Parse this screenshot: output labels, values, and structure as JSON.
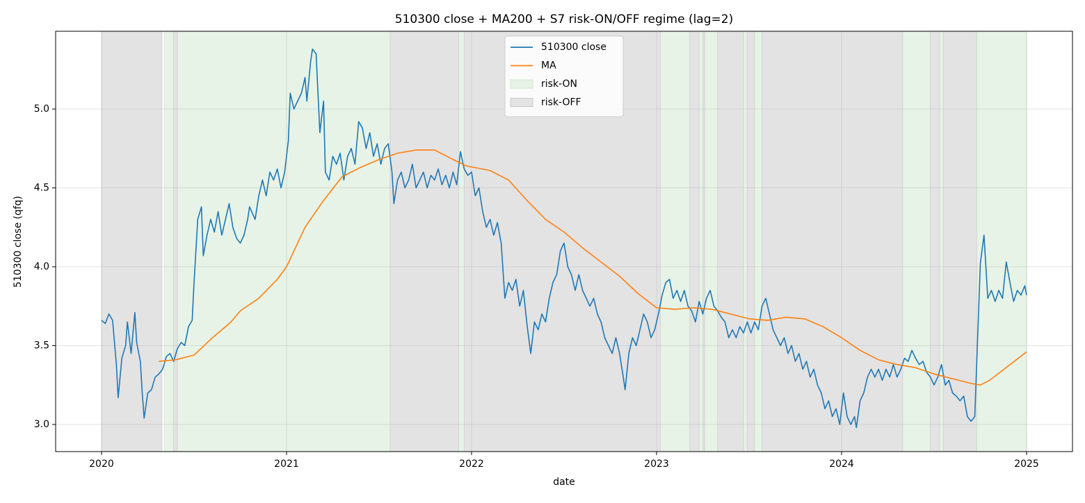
{
  "chart_data": {
    "type": "line",
    "title": "510300 close + MA200 + S7 risk-ON/OFF regime (lag=2)",
    "xlabel": "date",
    "ylabel": "510300 close (qfq)",
    "xlim": [
      2019.752,
      2025.248
    ],
    "xticks": [
      2020,
      2021,
      2022,
      2023,
      2024,
      2025
    ],
    "ylim": [
      2.828,
      5.493
    ],
    "yticks": [
      {
        "value": 3.0,
        "label": "3.0"
      },
      {
        "value": 3.5,
        "label": "3.5"
      },
      {
        "value": 4.0,
        "label": "4.0"
      },
      {
        "value": 4.5,
        "label": "4.5"
      },
      {
        "value": 5.0,
        "label": "5.0"
      }
    ],
    "grid": true,
    "legend": "upper center",
    "series": [
      {
        "name": "510300 close",
        "color": "#1f77b4",
        "x": [
          2020.0,
          2020.02,
          2020.04,
          2020.06,
          2020.08,
          2020.09,
          2020.11,
          2020.13,
          2020.14,
          2020.16,
          2020.18,
          2020.19,
          2020.21,
          2020.22,
          2020.23,
          2020.25,
          2020.27,
          2020.29,
          2020.31,
          2020.33,
          2020.35,
          2020.37,
          2020.39,
          2020.41,
          2020.43,
          2020.45,
          2020.47,
          2020.49,
          2020.5,
          2020.52,
          2020.54,
          2020.55,
          2020.57,
          2020.59,
          2020.61,
          2020.63,
          2020.65,
          2020.67,
          2020.69,
          2020.71,
          2020.73,
          2020.75,
          2020.77,
          2020.79,
          2020.8,
          2020.83,
          2020.85,
          2020.87,
          2020.89,
          2020.91,
          2020.93,
          2020.95,
          2020.97,
          2020.99,
          2021.01,
          2021.02,
          2021.04,
          2021.06,
          2021.08,
          2021.1,
          2021.11,
          2021.13,
          2021.14,
          2021.16,
          2021.18,
          2021.2,
          2021.21,
          2021.23,
          2021.25,
          2021.27,
          2021.29,
          2021.31,
          2021.33,
          2021.35,
          2021.37,
          2021.39,
          2021.41,
          2021.43,
          2021.45,
          2021.47,
          2021.49,
          2021.51,
          2021.53,
          2021.55,
          2021.57,
          2021.58,
          2021.6,
          2021.62,
          2021.64,
          2021.66,
          2021.68,
          2021.7,
          2021.72,
          2021.74,
          2021.76,
          2021.78,
          2021.8,
          2021.82,
          2021.84,
          2021.86,
          2021.88,
          2021.9,
          2021.92,
          2021.94,
          2021.96,
          2021.98,
          2022.0,
          2022.02,
          2022.04,
          2022.06,
          2022.08,
          2022.1,
          2022.12,
          2022.14,
          2022.16,
          2022.18,
          2022.2,
          2022.22,
          2022.24,
          2022.26,
          2022.28,
          2022.3,
          2022.32,
          2022.34,
          2022.36,
          2022.38,
          2022.4,
          2022.42,
          2022.44,
          2022.46,
          2022.48,
          2022.5,
          2022.52,
          2022.54,
          2022.56,
          2022.58,
          2022.6,
          2022.62,
          2022.64,
          2022.66,
          2022.68,
          2022.7,
          2022.72,
          2022.74,
          2022.76,
          2022.78,
          2022.8,
          2022.82,
          2022.83,
          2022.85,
          2022.87,
          2022.89,
          2022.91,
          2022.93,
          2022.95,
          2022.97,
          2022.99,
          2023.01,
          2023.03,
          2023.05,
          2023.07,
          2023.09,
          2023.11,
          2023.13,
          2023.15,
          2023.17,
          2023.19,
          2023.21,
          2023.23,
          2023.25,
          2023.27,
          2023.29,
          2023.31,
          2023.33,
          2023.35,
          2023.37,
          2023.39,
          2023.41,
          2023.43,
          2023.45,
          2023.47,
          2023.49,
          2023.51,
          2023.53,
          2023.55,
          2023.57,
          2023.59,
          2023.61,
          2023.63,
          2023.65,
          2023.67,
          2023.69,
          2023.71,
          2023.73,
          2023.75,
          2023.77,
          2023.79,
          2023.81,
          2023.83,
          2023.85,
          2023.87,
          2023.89,
          2023.91,
          2023.93,
          2023.95,
          2023.97,
          2023.99,
          2024.01,
          2024.03,
          2024.05,
          2024.07,
          2024.08,
          2024.1,
          2024.12,
          2024.14,
          2024.16,
          2024.18,
          2024.2,
          2024.22,
          2024.24,
          2024.26,
          2024.28,
          2024.3,
          2024.32,
          2024.34,
          2024.36,
          2024.38,
          2024.4,
          2024.42,
          2024.44,
          2024.46,
          2024.48,
          2024.5,
          2024.52,
          2024.54,
          2024.56,
          2024.58,
          2024.6,
          2024.62,
          2024.64,
          2024.66,
          2024.68,
          2024.7,
          2024.72,
          2024.74,
          2024.75,
          2024.77,
          2024.79,
          2024.81,
          2024.83,
          2024.85,
          2024.87,
          2024.89,
          2024.91,
          2024.93,
          2024.95,
          2024.97,
          2024.99,
          2025.0
        ],
        "values": [
          3.66,
          3.64,
          3.7,
          3.66,
          3.38,
          3.17,
          3.42,
          3.5,
          3.65,
          3.45,
          3.71,
          3.52,
          3.4,
          3.2,
          3.04,
          3.2,
          3.22,
          3.3,
          3.32,
          3.35,
          3.43,
          3.45,
          3.4,
          3.48,
          3.52,
          3.5,
          3.62,
          3.66,
          3.9,
          4.3,
          4.38,
          4.07,
          4.2,
          4.3,
          4.22,
          4.35,
          4.2,
          4.3,
          4.4,
          4.25,
          4.18,
          4.15,
          4.2,
          4.3,
          4.38,
          4.3,
          4.45,
          4.55,
          4.45,
          4.6,
          4.55,
          4.62,
          4.5,
          4.6,
          4.8,
          5.1,
          5.0,
          5.05,
          5.1,
          5.2,
          5.05,
          5.3,
          5.38,
          5.35,
          4.85,
          5.05,
          4.6,
          4.55,
          4.7,
          4.65,
          4.72,
          4.55,
          4.7,
          4.75,
          4.65,
          4.92,
          4.88,
          4.75,
          4.85,
          4.7,
          4.78,
          4.65,
          4.75,
          4.78,
          4.6,
          4.4,
          4.55,
          4.6,
          4.5,
          4.55,
          4.65,
          4.5,
          4.55,
          4.6,
          4.5,
          4.58,
          4.55,
          4.62,
          4.52,
          4.58,
          4.5,
          4.6,
          4.52,
          4.73,
          4.62,
          4.58,
          4.6,
          4.45,
          4.5,
          4.35,
          4.25,
          4.3,
          4.2,
          4.28,
          4.15,
          3.8,
          3.9,
          3.85,
          3.92,
          3.75,
          3.85,
          3.63,
          3.45,
          3.65,
          3.6,
          3.7,
          3.65,
          3.8,
          3.9,
          3.95,
          4.1,
          4.15,
          4.0,
          3.95,
          3.85,
          3.95,
          3.85,
          3.8,
          3.75,
          3.8,
          3.7,
          3.65,
          3.55,
          3.5,
          3.45,
          3.55,
          3.45,
          3.3,
          3.22,
          3.45,
          3.55,
          3.5,
          3.6,
          3.7,
          3.65,
          3.55,
          3.6,
          3.7,
          3.82,
          3.9,
          3.92,
          3.8,
          3.85,
          3.78,
          3.85,
          3.75,
          3.72,
          3.65,
          3.78,
          3.7,
          3.8,
          3.85,
          3.75,
          3.72,
          3.68,
          3.65,
          3.55,
          3.6,
          3.55,
          3.62,
          3.58,
          3.65,
          3.58,
          3.65,
          3.6,
          3.75,
          3.8,
          3.7,
          3.6,
          3.55,
          3.5,
          3.55,
          3.45,
          3.5,
          3.4,
          3.45,
          3.35,
          3.4,
          3.3,
          3.35,
          3.25,
          3.2,
          3.1,
          3.15,
          3.05,
          3.1,
          3.0,
          3.2,
          3.05,
          3.0,
          3.05,
          2.98,
          3.15,
          3.2,
          3.3,
          3.35,
          3.3,
          3.35,
          3.28,
          3.35,
          3.3,
          3.38,
          3.3,
          3.35,
          3.42,
          3.4,
          3.47,
          3.42,
          3.38,
          3.4,
          3.33,
          3.3,
          3.25,
          3.3,
          3.38,
          3.25,
          3.28,
          3.2,
          3.18,
          3.15,
          3.18,
          3.05,
          3.02,
          3.05,
          3.7,
          4.02,
          4.2,
          3.8,
          3.85,
          3.78,
          3.85,
          3.8,
          4.03,
          3.9,
          3.78,
          3.85,
          3.82,
          3.88,
          3.82
        ]
      },
      {
        "name": "MA",
        "color": "#ff7f0e",
        "x": [
          2020.31,
          2020.4,
          2020.5,
          2020.6,
          2020.7,
          2020.75,
          2020.85,
          2020.95,
          2021.0,
          2021.1,
          2021.2,
          2021.3,
          2021.4,
          2021.5,
          2021.6,
          2021.7,
          2021.8,
          2021.9,
          2021.97,
          2022.1,
          2022.2,
          2022.3,
          2022.4,
          2022.5,
          2022.6,
          2022.7,
          2022.8,
          2022.9,
          2023.0,
          2023.1,
          2023.2,
          2023.3,
          2023.4,
          2023.5,
          2023.6,
          2023.7,
          2023.8,
          2023.9,
          2024.0,
          2024.1,
          2024.2,
          2024.3,
          2024.4,
          2024.5,
          2024.6,
          2024.7,
          2024.75,
          2024.8,
          2024.9,
          2025.0
        ],
        "values": [
          3.4,
          3.41,
          3.44,
          3.55,
          3.65,
          3.72,
          3.8,
          3.92,
          4.0,
          4.25,
          4.42,
          4.57,
          4.63,
          4.68,
          4.72,
          4.74,
          4.74,
          4.68,
          4.64,
          4.61,
          4.55,
          4.42,
          4.3,
          4.22,
          4.12,
          4.03,
          3.94,
          3.83,
          3.74,
          3.73,
          3.74,
          3.73,
          3.7,
          3.67,
          3.66,
          3.68,
          3.67,
          3.62,
          3.55,
          3.47,
          3.41,
          3.38,
          3.36,
          3.32,
          3.29,
          3.26,
          3.25,
          3.28,
          3.37,
          3.46
        ]
      }
    ],
    "regimes": [
      {
        "name": "risk-ON",
        "color": "#e6f3e6",
        "spans": [
          [
            2020.34,
            2020.39
          ],
          [
            2020.41,
            2021.56
          ],
          [
            2021.93,
            2021.96
          ],
          [
            2023.02,
            2023.18
          ],
          [
            2023.23,
            2023.25
          ],
          [
            2023.26,
            2023.33
          ],
          [
            2023.47,
            2023.49
          ],
          [
            2023.53,
            2023.57
          ],
          [
            2024.33,
            2024.48
          ],
          [
            2024.53,
            2024.55
          ],
          [
            2024.73,
            2025.0
          ]
        ]
      },
      {
        "name": "risk-OFF",
        "color": "#e3e3e3",
        "spans": [
          [
            2020.0,
            2020.327
          ],
          [
            2020.39,
            2020.41
          ],
          [
            2021.56,
            2021.93
          ],
          [
            2021.96,
            2023.02
          ],
          [
            2023.18,
            2023.23
          ],
          [
            2023.25,
            2023.26
          ],
          [
            2023.33,
            2023.47
          ],
          [
            2023.49,
            2023.53
          ],
          [
            2023.57,
            2024.33
          ],
          [
            2024.48,
            2024.53
          ],
          [
            2024.55,
            2024.73
          ]
        ]
      }
    ]
  }
}
